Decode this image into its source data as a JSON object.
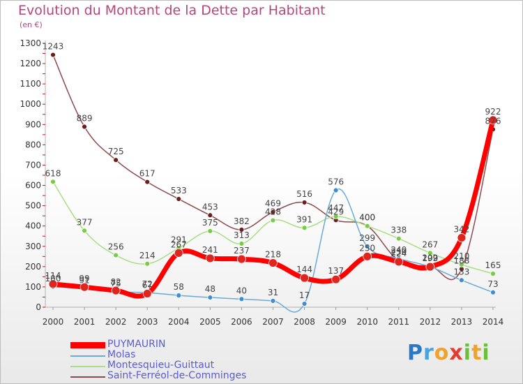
{
  "title": "Evolution du Montant de la Dette par Habitant",
  "subtitle": "(en €)",
  "logo": {
    "letters": [
      {
        "ch": "P",
        "color": "#2b78c6"
      },
      {
        "ch": "r",
        "color": "#4aa3df"
      },
      {
        "ch": "o",
        "color": "#f0a22b"
      },
      {
        "ch": "x",
        "color": "#e63b2e"
      },
      {
        "ch": "i",
        "color": "#6cbf3a"
      },
      {
        "ch": "t",
        "color": "#f0a22b"
      },
      {
        "ch": "i",
        "color": "#6cbf3a"
      }
    ]
  },
  "chart_data": {
    "type": "line",
    "title": "Evolution du Montant de la Dette par Habitant",
    "subtitle": "(en €)",
    "xlabel": "",
    "ylabel": "",
    "x": [
      "2000",
      "2001",
      "2002",
      "2003",
      "2004",
      "2005",
      "2006",
      "2007",
      "2008",
      "2009",
      "2010",
      "2011",
      "2012",
      "2013",
      "2014"
    ],
    "ylim": [
      0,
      1300
    ],
    "yticks": [
      0,
      100,
      200,
      300,
      400,
      500,
      600,
      700,
      800,
      900,
      1000,
      1100,
      1200,
      1300
    ],
    "grid": false,
    "legend_position": "bottom-left",
    "series": [
      {
        "name": "PUYMAURIN",
        "color": "#ff0000",
        "marker": "#e0241e",
        "width": 7,
        "labels": true,
        "values": [
          114,
          99,
          82,
          67,
          267,
          241,
          237,
          218,
          144,
          137,
          250,
          224,
          199,
          342,
          922
        ]
      },
      {
        "name": "Molas",
        "color": "#6aaad8",
        "marker": "#3f8cd0",
        "width": 1.5,
        "labels": true,
        "values": [
          100,
          91,
          75,
          72,
          58,
          48,
          40,
          31,
          17,
          576,
          299,
          240,
          199,
          133,
          73
        ]
      },
      {
        "name": "Montesquieu-Guittaut",
        "color": "#a8de86",
        "marker": "#76cc43",
        "width": 1.5,
        "labels": true,
        "values": [
          618,
          377,
          256,
          214,
          291,
          375,
          313,
          428,
          391,
          447,
          400,
          338,
          267,
          210,
          165
        ]
      },
      {
        "name": "Saint-Ferréol-de-Comminges",
        "color": "#8d4a4f",
        "marker": "#6b1e1e",
        "width": 1.5,
        "labels": true,
        "values": [
          1243,
          889,
          725,
          617,
          533,
          453,
          382,
          469,
          516,
          429,
          400,
          230,
          202,
          188,
          876
        ]
      }
    ]
  }
}
